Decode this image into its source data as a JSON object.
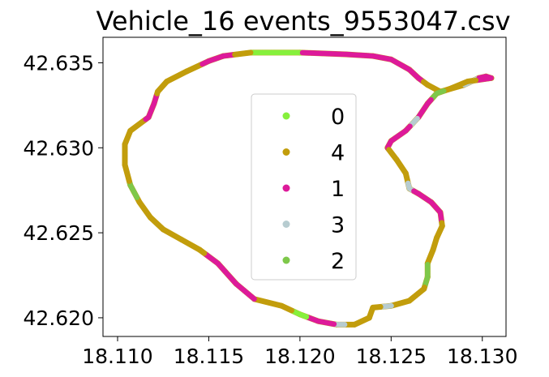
{
  "chart_data": {
    "type": "scatter",
    "title": "Vehicle_16 events_9553047.csv",
    "xlabel": "",
    "ylabel": "",
    "xlim": [
      18.1092,
      18.1313
    ],
    "ylim": [
      42.6189,
      42.6365
    ],
    "x_ticks": [
      18.11,
      18.115,
      18.12,
      18.125,
      18.13
    ],
    "x_tick_labels": [
      "18.110",
      "18.115",
      "18.120",
      "18.125",
      "18.130"
    ],
    "y_ticks": [
      42.62,
      42.625,
      42.63,
      42.635
    ],
    "y_tick_labels": [
      "42.620",
      "42.625",
      "42.630",
      "42.635"
    ],
    "grid": false,
    "legend_position": "center",
    "legend": [
      {
        "label": "0",
        "color": "#86f03c"
      },
      {
        "label": "4",
        "color": "#c29d0c"
      },
      {
        "label": "1",
        "color": "#dd1a9a"
      },
      {
        "label": "3",
        "color": "#b7ccd0"
      },
      {
        "label": "2",
        "color": "#7ec84a"
      }
    ],
    "route": [
      [
        18.1173,
        42.6356
      ],
      [
        18.12,
        42.6356
      ],
      [
        18.1225,
        42.6355
      ],
      [
        18.124,
        42.6354
      ],
      [
        18.125,
        42.6352
      ],
      [
        18.126,
        42.6346
      ],
      [
        18.1265,
        42.6341
      ],
      [
        18.127,
        42.6337
      ],
      [
        18.1277,
        42.6333
      ],
      [
        18.129,
        42.6337
      ],
      [
        18.1298,
        42.6341
      ],
      [
        18.1302,
        42.6342
      ],
      [
        18.1305,
        42.6341
      ],
      [
        18.1292,
        42.6339
      ],
      [
        18.1283,
        42.6335
      ],
      [
        18.1275,
        42.6332
      ],
      [
        18.127,
        42.6326
      ],
      [
        18.1265,
        42.6318
      ],
      [
        18.1258,
        42.631
      ],
      [
        18.125,
        42.6304
      ],
      [
        18.1248,
        42.63
      ],
      [
        18.1253,
        42.6293
      ],
      [
        18.1258,
        42.6285
      ],
      [
        18.126,
        42.6276
      ],
      [
        18.1265,
        42.6273
      ],
      [
        18.1272,
        42.6268
      ],
      [
        18.1277,
        42.6262
      ],
      [
        18.1278,
        42.6254
      ],
      [
        18.1275,
        42.6247
      ],
      [
        18.1273,
        42.624
      ],
      [
        18.127,
        42.6232
      ],
      [
        18.127,
        42.6224
      ],
      [
        18.1268,
        42.6217
      ],
      [
        18.126,
        42.621
      ],
      [
        18.125,
        42.6207
      ],
      [
        18.124,
        42.6206
      ],
      [
        18.1238,
        42.62
      ],
      [
        18.123,
        42.6196
      ],
      [
        18.122,
        42.6196
      ],
      [
        18.121,
        42.6198
      ],
      [
        18.12,
        42.6202
      ],
      [
        18.119,
        42.6207
      ],
      [
        18.1175,
        42.6211
      ],
      [
        18.1165,
        42.622
      ],
      [
        18.1155,
        42.6232
      ],
      [
        18.1145,
        42.624
      ],
      [
        18.1135,
        42.6246
      ],
      [
        18.1125,
        42.6252
      ],
      [
        18.1118,
        42.6259
      ],
      [
        18.1112,
        42.6268
      ],
      [
        18.1107,
        42.6278
      ],
      [
        18.1104,
        42.629
      ],
      [
        18.1104,
        42.6302
      ],
      [
        18.1107,
        42.631
      ],
      [
        18.1117,
        42.6318
      ],
      [
        18.112,
        42.6326
      ],
      [
        18.1122,
        42.6333
      ],
      [
        18.1127,
        42.6339
      ],
      [
        18.1138,
        42.6345
      ],
      [
        18.115,
        42.6351
      ],
      [
        18.1158,
        42.6354
      ],
      [
        18.1173,
        42.6356
      ]
    ],
    "segments": [
      {
        "series": "0",
        "t": [
          0.0,
          0.045
        ]
      },
      {
        "series": "1",
        "t": [
          0.045,
          0.16
        ]
      },
      {
        "series": "4",
        "t": [
          0.16,
          0.2
        ]
      },
      {
        "series": "3",
        "t": [
          0.2,
          0.215
        ]
      },
      {
        "series": "1",
        "t": [
          0.215,
          0.24
        ]
      },
      {
        "series": "4",
        "t": [
          0.24,
          0.27
        ]
      },
      {
        "series": "2",
        "t": [
          0.27,
          0.285
        ]
      },
      {
        "series": "1",
        "t": [
          0.285,
          0.305
        ]
      },
      {
        "series": "3",
        "t": [
          0.305,
          0.315
        ]
      },
      {
        "series": "1",
        "t": [
          0.315,
          0.345
        ]
      },
      {
        "series": "4",
        "t": [
          0.345,
          0.38
        ]
      },
      {
        "series": "3",
        "t": [
          0.38,
          0.39
        ]
      },
      {
        "series": "1",
        "t": [
          0.39,
          0.43
        ]
      },
      {
        "series": "4",
        "t": [
          0.43,
          0.47
        ]
      },
      {
        "series": "2",
        "t": [
          0.47,
          0.49
        ]
      },
      {
        "series": "4",
        "t": [
          0.49,
          0.525
        ]
      },
      {
        "series": "3",
        "t": [
          0.525,
          0.535
        ]
      },
      {
        "series": "4",
        "t": [
          0.535,
          0.575
        ]
      },
      {
        "series": "3",
        "t": [
          0.575,
          0.585
        ]
      },
      {
        "series": "1",
        "t": [
          0.585,
          0.61
        ]
      },
      {
        "series": "0",
        "t": [
          0.61,
          0.625
        ]
      },
      {
        "series": "4",
        "t": [
          0.625,
          0.66
        ]
      },
      {
        "series": "1",
        "t": [
          0.66,
          0.72
        ]
      },
      {
        "series": "4",
        "t": [
          0.72,
          0.8
        ]
      },
      {
        "series": "2",
        "t": [
          0.8,
          0.815
        ]
      },
      {
        "series": "4",
        "t": [
          0.815,
          0.88
        ]
      },
      {
        "series": "1",
        "t": [
          0.88,
          0.905
        ]
      },
      {
        "series": "4",
        "t": [
          0.905,
          0.955
        ]
      },
      {
        "series": "1",
        "t": [
          0.955,
          0.985
        ]
      },
      {
        "series": "4",
        "t": [
          0.985,
          1.0
        ]
      }
    ]
  }
}
